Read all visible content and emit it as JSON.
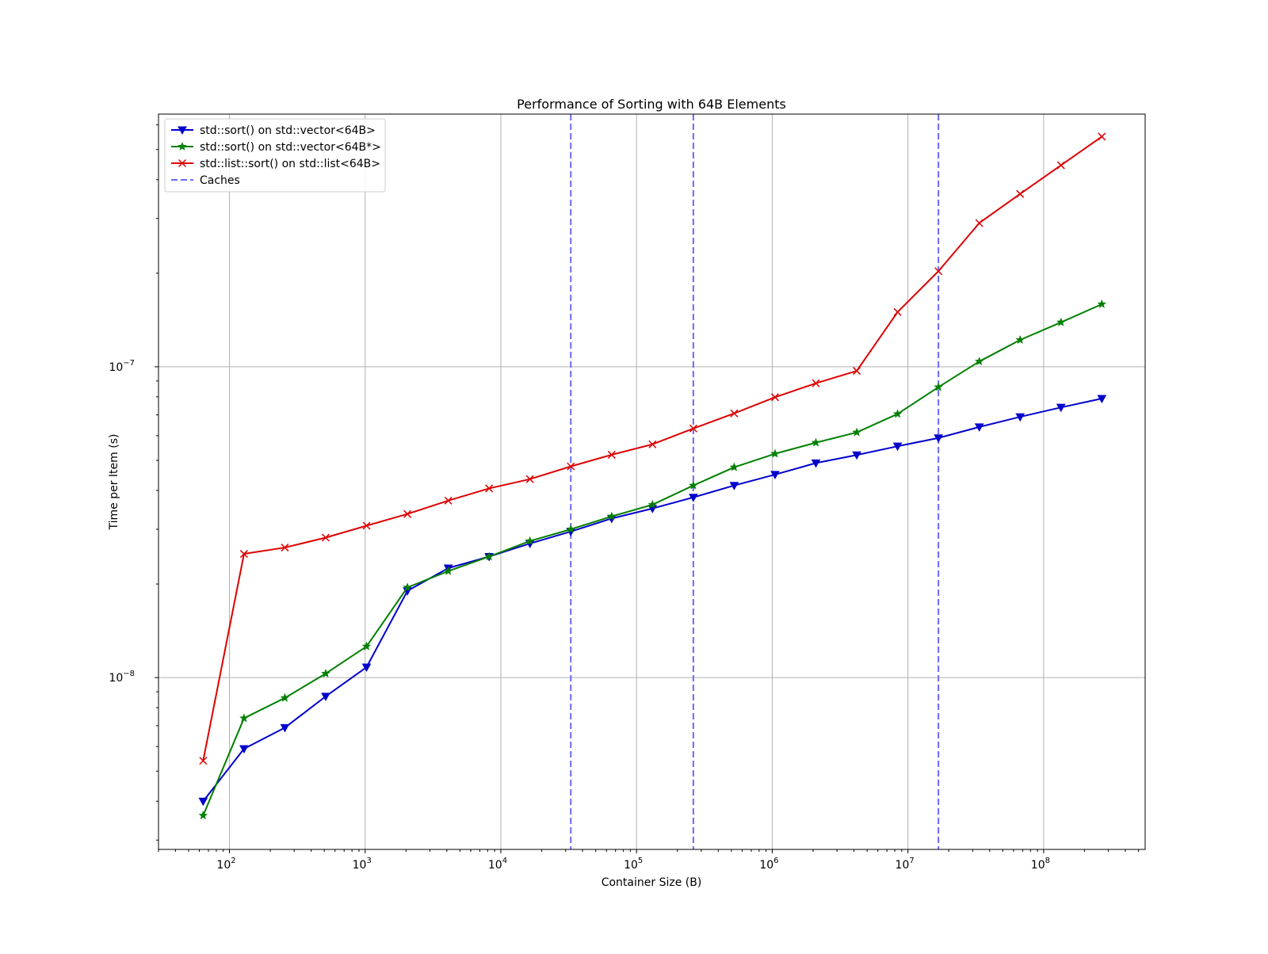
{
  "chart_data": {
    "type": "line",
    "title": "Performance of Sorting with 64B Elements",
    "xlabel": "Container Size (B)",
    "ylabel": "Time per Item (s)",
    "x_scale": "log",
    "y_scale": "log",
    "xlim": [
      30,
      560000000
    ],
    "ylim": [
      2.8e-09,
      6.5e-07
    ],
    "x_major_ticks": [
      100,
      1000,
      10000,
      100000,
      1000000,
      10000000,
      100000000
    ],
    "x_major_tick_labels": [
      {
        "base": "10",
        "exp": "2"
      },
      {
        "base": "10",
        "exp": "3"
      },
      {
        "base": "10",
        "exp": "4"
      },
      {
        "base": "10",
        "exp": "5"
      },
      {
        "base": "10",
        "exp": "6"
      },
      {
        "base": "10",
        "exp": "7"
      },
      {
        "base": "10",
        "exp": "8"
      }
    ],
    "y_major_ticks": [
      1e-08,
      1e-07
    ],
    "y_major_tick_labels": [
      {
        "base": "10",
        "exp": "−8"
      },
      {
        "base": "10",
        "exp": "−7"
      }
    ],
    "grid": true,
    "legend_position": "top-left",
    "x": [
      64,
      128,
      256,
      512,
      1024,
      2048,
      4096,
      8192,
      16384,
      32768,
      65536,
      131072,
      262144,
      524288,
      1048576,
      2097152,
      4194304,
      8388608,
      16777216,
      33554432,
      67108864,
      134217728,
      268435456
    ],
    "series": [
      {
        "name": "std::sort() on std::vector<64B>",
        "color": "#0000cc",
        "marker": "triangle-down",
        "values": [
          4e-09,
          5.9e-09,
          6.9e-09,
          8.7e-09,
          1.08e-08,
          1.9e-08,
          2.25e-08,
          2.45e-08,
          2.7e-08,
          2.95e-08,
          3.25e-08,
          3.5e-08,
          3.8e-08,
          4.15e-08,
          4.5e-08,
          4.9e-08,
          5.2e-08,
          5.55e-08,
          5.9e-08,
          6.4e-08,
          6.9e-08,
          7.4e-08,
          7.9e-08
        ]
      },
      {
        "name": "std::sort() on std::vector<64B*>",
        "color": "#008000",
        "marker": "star",
        "values": [
          3.6e-09,
          7.4e-09,
          8.6e-09,
          1.03e-08,
          1.26e-08,
          1.95e-08,
          2.2e-08,
          2.45e-08,
          2.75e-08,
          3e-08,
          3.3e-08,
          3.6e-08,
          4.15e-08,
          4.75e-08,
          5.25e-08,
          5.7e-08,
          6.15e-08,
          7.05e-08,
          8.6e-08,
          1.04e-07,
          1.22e-07,
          1.39e-07,
          1.59e-07
        ]
      },
      {
        "name": "std::list::sort() on std::list<64B>",
        "color": "#dd0000",
        "marker": "x",
        "values": [
          5.4e-09,
          2.5e-08,
          2.62e-08,
          2.82e-08,
          3.08e-08,
          3.36e-08,
          3.71e-08,
          4.06e-08,
          4.35e-08,
          4.78e-08,
          5.21e-08,
          5.63e-08,
          6.33e-08,
          7.08e-08,
          7.98e-08,
          8.85e-08,
          9.7e-08,
          1.5e-07,
          2.03e-07,
          2.9e-07,
          3.6e-07,
          4.45e-07,
          5.5e-07
        ]
      }
    ],
    "vlines": {
      "name": "Caches",
      "color": "#6a6aff",
      "style": "dashed",
      "x": [
        32768,
        262144,
        16777216
      ]
    }
  }
}
